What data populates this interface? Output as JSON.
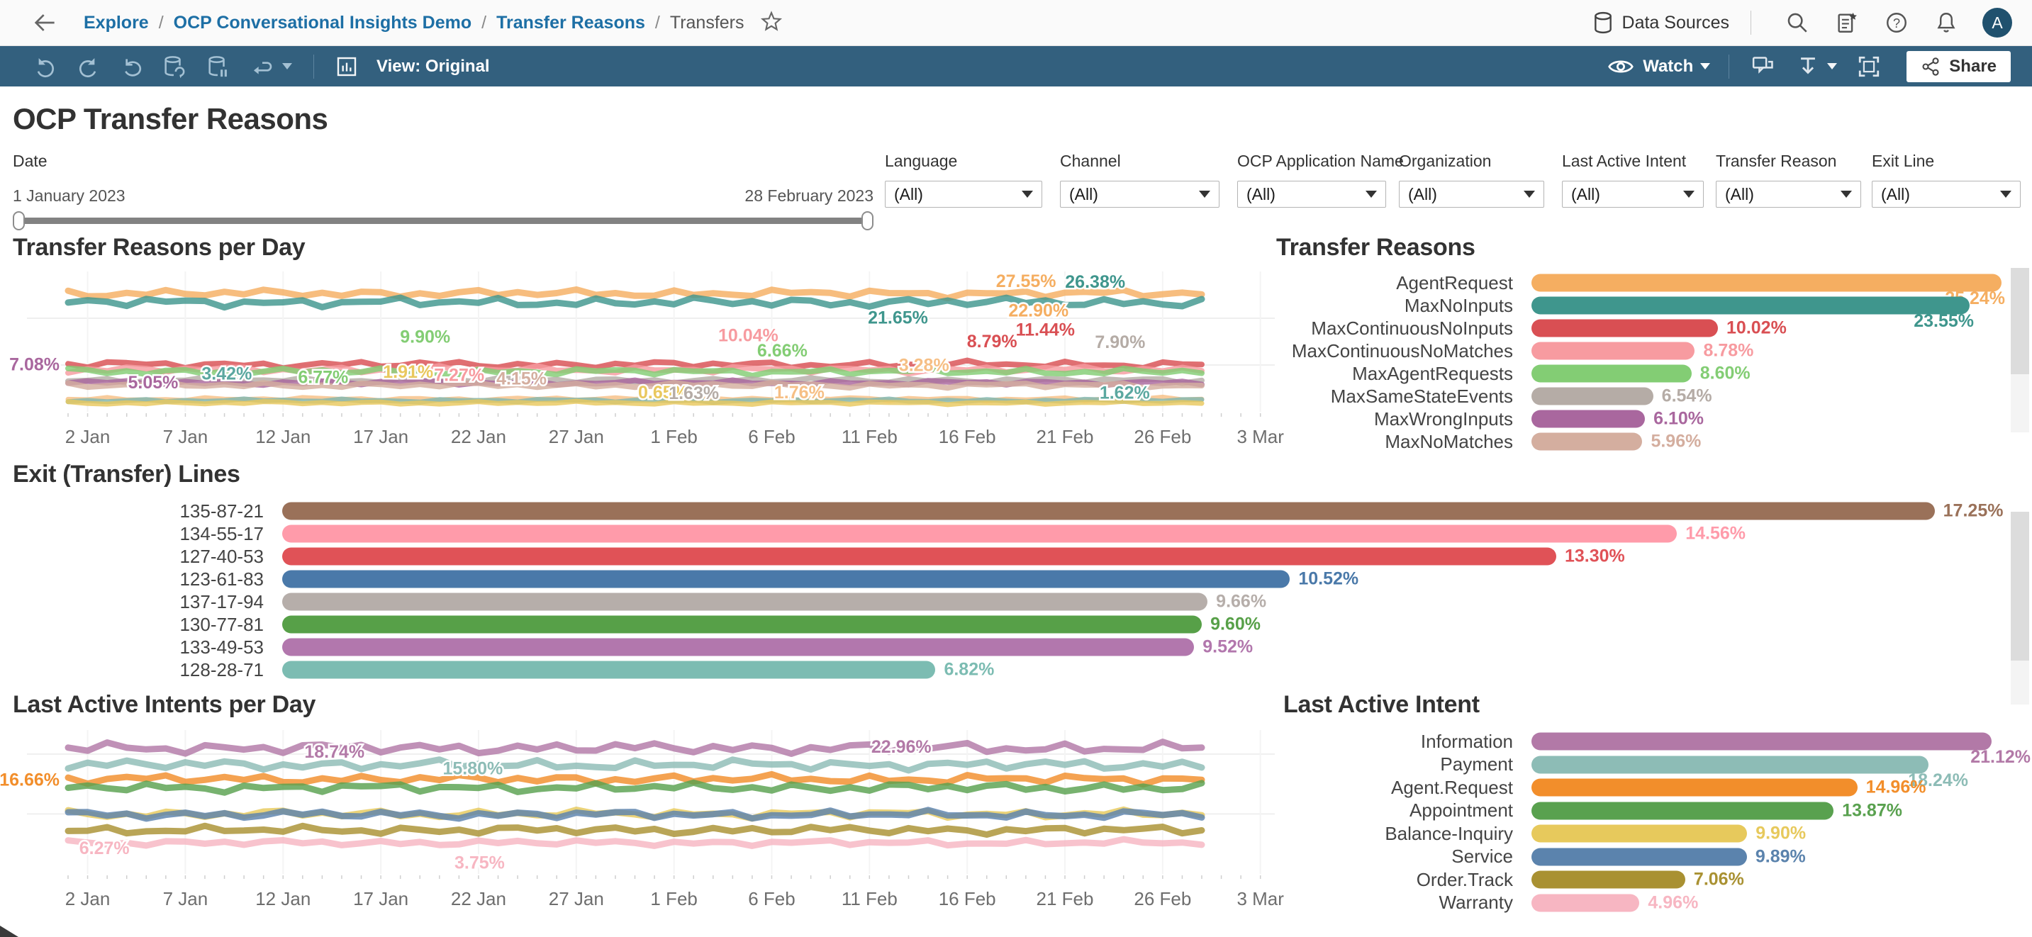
{
  "nav": {
    "breadcrumb": [
      {
        "label": "Explore"
      },
      {
        "label": "OCP Conversational Insights Demo"
      },
      {
        "label": "Transfer Reasons"
      },
      {
        "label": "Transfers"
      }
    ],
    "data_sources_label": "Data Sources",
    "avatar": "A"
  },
  "toolbar": {
    "view_label": "View: Original",
    "watch_label": "Watch",
    "share_label": "Share"
  },
  "page": {
    "title": "OCP Transfer Reasons"
  },
  "filters": {
    "date": {
      "label": "Date",
      "start": "1 January 2023",
      "end": "28 February 2023"
    },
    "dropdowns": [
      {
        "label": "Language",
        "value": "(All)"
      },
      {
        "label": "Channel",
        "value": "(All)"
      },
      {
        "label": "OCP Application Name",
        "value": "(All)"
      },
      {
        "label": "Organization",
        "value": "(All)"
      },
      {
        "label": "Last Active Intent",
        "value": "(All)"
      },
      {
        "label": "Transfer Reason",
        "value": "(All)"
      },
      {
        "label": "Exit Line",
        "value": "(All)"
      }
    ]
  },
  "chart_data": [
    {
      "id": "transfer_reasons_per_day",
      "type": "line",
      "title": "Transfer Reasons per Day",
      "x_ticks": [
        "2 Jan",
        "7 Jan",
        "12 Jan",
        "17 Jan",
        "22 Jan",
        "27 Jan",
        "1 Feb",
        "6 Feb",
        "11 Feb",
        "16 Feb",
        "21 Feb",
        "26 Feb",
        "3 Mar"
      ],
      "tick_days": [
        1,
        6,
        11,
        16,
        21,
        26,
        31,
        36,
        41,
        46,
        51,
        56,
        61
      ],
      "x_range_days": 61,
      "data_days": 58,
      "ylim": [
        0,
        30
      ],
      "grid": [
        10,
        20
      ],
      "series": [
        {
          "name": "AgentRequest",
          "color": "#f5ae61",
          "mean": 25.3,
          "amp": 1.0,
          "seed": 1.3,
          "w": 9
        },
        {
          "name": "MaxNoInputs",
          "color": "#3f968d",
          "mean": 23.4,
          "amp": 1.2,
          "seed": 4.1,
          "w": 9
        },
        {
          "name": "MaxContinuousNoInputs",
          "color": "#d94f53",
          "mean": 10.1,
          "amp": 0.9,
          "seed": 2.2,
          "w": 8
        },
        {
          "name": "MaxContinuousNoMatches",
          "color": "#f79ba0",
          "mean": 9.0,
          "amp": 0.9,
          "seed": 5.7,
          "w": 8
        },
        {
          "name": "MaxAgentRequests",
          "color": "#83cd74",
          "mean": 8.6,
          "amp": 0.9,
          "seed": 0.6,
          "w": 8
        },
        {
          "name": "MaxSameStateEvents",
          "color": "#b5aca6",
          "mean": 6.7,
          "amp": 0.7,
          "seed": 3.4,
          "w": 8
        },
        {
          "name": "MaxWrongInputs",
          "color": "#a9679e",
          "mean": 6.2,
          "amp": 0.6,
          "seed": 6.3,
          "w": 8
        },
        {
          "name": "MaxNoMatches",
          "color": "#d4ae9f",
          "mean": 5.7,
          "amp": 0.7,
          "seed": 7.9,
          "w": 8
        },
        {
          "name": "unlabeled-orange",
          "color": "#f6bf85",
          "mean": 2.7,
          "amp": 0.45,
          "seed": 2.9,
          "w": 7
        },
        {
          "name": "unlabeled-teal",
          "color": "#81b7b0",
          "mean": 2.4,
          "amp": 0.4,
          "seed": 5.1,
          "w": 7
        },
        {
          "name": "unlabeled-yellow",
          "color": "#e9c85e",
          "mean": 1.9,
          "amp": 0.4,
          "seed": 1.1,
          "w": 7
        }
      ],
      "labels": [
        {
          "text": "7.08%",
          "color": "#a9679e",
          "fx": 0.0,
          "v": 8.9,
          "anchor": "end"
        },
        {
          "text": "5.05%",
          "color": "#a9679e",
          "fx": 0.075,
          "v": 5.0
        },
        {
          "text": "3.42%",
          "color": "#5ba8a0",
          "fx": 0.14,
          "v": 6.9
        },
        {
          "text": "6.77%",
          "color": "#83cd74",
          "fx": 0.225,
          "v": 6.1
        },
        {
          "text": "9.90%",
          "color": "#83cd74",
          "fx": 0.315,
          "v": 14.8
        },
        {
          "text": "1.91%",
          "color": "#e9c85e",
          "fx": 0.3,
          "v": 7.3
        },
        {
          "text": "7.27%",
          "color": "#f79ba0",
          "fx": 0.345,
          "v": 6.6
        },
        {
          "text": "4.15%",
          "color": "#d4ae9f",
          "fx": 0.4,
          "v": 5.8
        },
        {
          "text": "0.65%",
          "color": "#e9c85e",
          "fx": 0.525,
          "v": 2.9
        },
        {
          "text": "1.63%",
          "color": "#b5aca6",
          "fx": 0.552,
          "v": 2.7
        },
        {
          "text": "10.04%",
          "color": "#f79ba0",
          "fx": 0.6,
          "v": 15.1
        },
        {
          "text": "6.66%",
          "color": "#83cd74",
          "fx": 0.63,
          "v": 11.8
        },
        {
          "text": "1.76%",
          "color": "#f6bf85",
          "fx": 0.645,
          "v": 2.9
        },
        {
          "text": "3.28%",
          "color": "#f6bf85",
          "fx": 0.755,
          "v": 8.7
        },
        {
          "text": "8.79%",
          "color": "#d94f53",
          "fx": 0.815,
          "v": 13.8
        },
        {
          "text": "11.44%",
          "color": "#d94f53",
          "fx": 0.862,
          "v": 16.3
        },
        {
          "text": "27.55%",
          "color": "#f5ae61",
          "fx": 0.845,
          "v": 26.7
        },
        {
          "text": "26.38%",
          "color": "#3f968d",
          "fx": 0.906,
          "v": 26.5
        },
        {
          "text": "22.90%",
          "color": "#f5ae61",
          "fx": 0.856,
          "v": 20.4
        },
        {
          "text": "21.65%",
          "color": "#3f968d",
          "fx": 0.732,
          "v": 18.9
        },
        {
          "text": "7.90%",
          "color": "#b5aca6",
          "fx": 0.928,
          "v": 13.6
        },
        {
          "text": "1.62%",
          "color": "#5ba8a0",
          "fx": 0.932,
          "v": 2.8
        }
      ]
    },
    {
      "id": "transfer_reasons",
      "type": "bar",
      "title": "Transfer Reasons",
      "categories": [
        "AgentRequest",
        "MaxNoInputs",
        "MaxContinuousNoInputs",
        "MaxContinuousNoMatches",
        "MaxAgentRequests",
        "MaxSameStateEvents",
        "MaxWrongInputs",
        "MaxNoMatches"
      ],
      "values": [
        25.24,
        23.55,
        10.02,
        8.78,
        8.6,
        6.54,
        6.1,
        5.96
      ],
      "value_labels": [
        "25.24%",
        "23.55%",
        "10.02%",
        "8.78%",
        "8.60%",
        "6.54%",
        "6.10%",
        "5.96%"
      ],
      "colors": [
        "#f5ae61",
        "#3f968d",
        "#d94f53",
        "#f79ba0",
        "#83cd74",
        "#b5aca6",
        "#a9679e",
        "#d4ae9f"
      ],
      "xlim": [
        0,
        25.6
      ],
      "label_drop": [
        0,
        1
      ],
      "drop_right": [
        4,
        48
      ]
    },
    {
      "id": "exit_transfer_lines",
      "type": "bar",
      "title": "Exit (Transfer) Lines",
      "categories": [
        "135-87-21",
        "134-55-17",
        "127-40-53",
        "123-61-83",
        "137-17-94",
        "130-77-81",
        "133-49-53",
        "128-28-71"
      ],
      "values": [
        17.25,
        14.56,
        13.3,
        10.52,
        9.66,
        9.6,
        9.52,
        6.82
      ],
      "value_labels": [
        "17.25%",
        "14.56%",
        "13.30%",
        "10.52%",
        "9.66%",
        "9.60%",
        "9.52%",
        "6.82%"
      ],
      "colors": [
        "#9a7159",
        "#ff9baa",
        "#e05257",
        "#4a79a9",
        "#b6aeaa",
        "#57a048",
        "#b277ad",
        "#7cbcb2"
      ],
      "xlim": [
        0,
        18.0
      ],
      "label_drop": [],
      "drop_right": []
    },
    {
      "id": "last_active_intents_per_day",
      "type": "line",
      "title": "Last Active Intents per Day",
      "x_ticks": [
        "2 Jan",
        "7 Jan",
        "12 Jan",
        "17 Jan",
        "22 Jan",
        "27 Jan",
        "1 Feb",
        "6 Feb",
        "11 Feb",
        "16 Feb",
        "21 Feb",
        "26 Feb",
        "3 Mar"
      ],
      "tick_days": [
        1,
        6,
        11,
        16,
        21,
        26,
        31,
        36,
        41,
        46,
        51,
        56,
        61
      ],
      "x_range_days": 61,
      "data_days": 58,
      "ylim": [
        0,
        24
      ],
      "grid": [
        10,
        20
      ],
      "series": [
        {
          "name": "Information",
          "color": "#b279a7",
          "mean": 21.0,
          "amp": 1.1,
          "seed": 2.6,
          "w": 9
        },
        {
          "name": "Payment",
          "color": "#8dbcb6",
          "mean": 18.2,
          "amp": 1.0,
          "seed": 5.9,
          "w": 9
        },
        {
          "name": "Agent.Request",
          "color": "#f28e2b",
          "mean": 15.8,
          "amp": 0.9,
          "seed": 1.8,
          "w": 9
        },
        {
          "name": "Appointment",
          "color": "#59a14f",
          "mean": 14.4,
          "amp": 0.9,
          "seed": 4.4,
          "w": 9
        },
        {
          "name": "Balance-Inquiry",
          "color": "#e7c95c",
          "mean": 10.0,
          "amp": 0.8,
          "seed": 0.9,
          "w": 9
        },
        {
          "name": "Service",
          "color": "#5b83ad",
          "mean": 9.9,
          "amp": 0.8,
          "seed": 6.8,
          "w": 9
        },
        {
          "name": "Order.Track",
          "color": "#a99132",
          "mean": 7.3,
          "amp": 0.8,
          "seed": 3.2,
          "w": 9
        },
        {
          "name": "Warranty",
          "color": "#f7b6c2",
          "mean": 5.2,
          "amp": 0.6,
          "seed": 7.2,
          "w": 9
        }
      ],
      "labels": [
        {
          "text": "16.66%",
          "color": "#f28e2b",
          "fx": 0.0,
          "v": 14.7,
          "anchor": "end"
        },
        {
          "text": "18.74%",
          "color": "#b279a7",
          "fx": 0.235,
          "v": 19.4
        },
        {
          "text": "15.80%",
          "color": "#8dbcb6",
          "fx": 0.357,
          "v": 16.6
        },
        {
          "text": "6.27%",
          "color": "#f7b6c2",
          "fx": 0.032,
          "v": 3.3
        },
        {
          "text": "3.75%",
          "color": "#f7b6c2",
          "fx": 0.363,
          "v": 0.9
        },
        {
          "text": "22.96%",
          "color": "#b279a7",
          "fx": 0.735,
          "v": 20.2
        }
      ]
    },
    {
      "id": "last_active_intent",
      "type": "bar",
      "title": "Last Active Intent",
      "categories": [
        "Information",
        "Payment",
        "Agent.Request",
        "Appointment",
        "Balance-Inquiry",
        "Service",
        "Order.Track",
        "Warranty"
      ],
      "values": [
        21.12,
        18.24,
        14.96,
        13.87,
        9.9,
        9.89,
        7.06,
        4.96
      ],
      "value_labels": [
        "21.12%",
        "18.24%",
        "14.96%",
        "13.87%",
        "9.90%",
        "9.89%",
        "7.06%",
        "4.96%"
      ],
      "colors": [
        "#b279a7",
        "#8dbcb6",
        "#f28e2b",
        "#59a14f",
        "#e7c95c",
        "#5b83ad",
        "#a99132",
        "#f7b6c2"
      ],
      "xlim": [
        0,
        22.0
      ],
      "label_drop": [
        0,
        1
      ],
      "drop_right": [
        -28,
        60
      ]
    }
  ]
}
